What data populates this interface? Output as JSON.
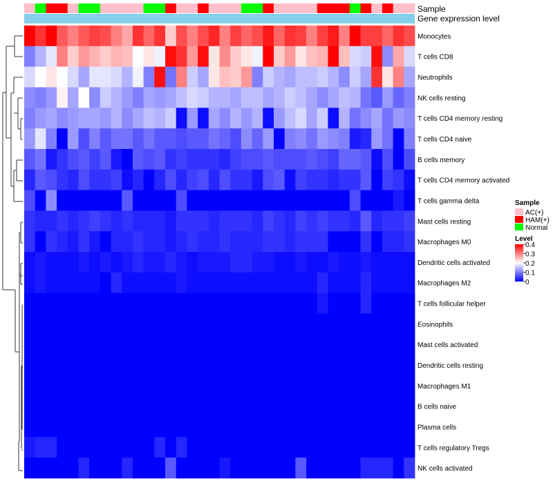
{
  "chart_data": {
    "type": "heatmap",
    "annotation_labels": {
      "sample": "Sample",
      "level": "Gene expression level"
    },
    "rows": [
      "Monocytes",
      "T cells CD8",
      "Neutrophils",
      "NK cells resting",
      "T cells CD4 memory resting",
      "T cells CD4 naive",
      "B cells memory",
      "T cells CD4 memory activated",
      "T cells gamma delta",
      "Mast cells resting",
      "Macrophages M0",
      "Dendritic cells activated",
      "Macrophages M2",
      "T cells follicular helper",
      "Eosinophils",
      "Mast cells activated",
      "Dendritic cells resting",
      "Macrophages M1",
      "B cells naive",
      "Plasma cells",
      "T cells regulatory  Tregs",
      "NK cells activated"
    ],
    "samples": [
      "AC(+)",
      "Normal",
      "HAM(+)",
      "HAM(+)",
      "AC(+)",
      "Normal",
      "Normal",
      "AC(+)",
      "AC(+)",
      "AC(+)",
      "AC(+)",
      "Normal",
      "Normal",
      "HAM(+)",
      "AC(+)",
      "AC(+)",
      "HAM(+)",
      "AC(+)",
      "AC(+)",
      "AC(+)",
      "Normal",
      "Normal",
      "HAM(+)",
      "AC(+)",
      "AC(+)",
      "AC(+)",
      "AC(+)",
      "HAM(+)",
      "HAM(+)",
      "HAM(+)",
      "Normal",
      "HAM(+)",
      "AC(+)",
      "HAM(+)",
      "AC(+)",
      "AC(+)"
    ],
    "sample_colors": {
      "AC(+)": "#ffc0cb",
      "HAM(+)": "#ff0000",
      "Normal": "#00ff00"
    },
    "level_bar_color": "#87ceeb",
    "values": [
      [
        0.4,
        0.36,
        0.4,
        0.33,
        0.3,
        0.33,
        0.35,
        0.34,
        0.3,
        0.27,
        0.36,
        0.32,
        0.36,
        0.24,
        0.34,
        0.3,
        0.34,
        0.37,
        0.3,
        0.35,
        0.32,
        0.34,
        0.38,
        0.32,
        0.36,
        0.35,
        0.3,
        0.35,
        0.38,
        0.3,
        0.4,
        0.35,
        0.35,
        0.32,
        0.36,
        0.34
      ],
      [
        0.1,
        0.14,
        0.18,
        0.3,
        0.24,
        0.28,
        0.26,
        0.24,
        0.26,
        0.25,
        0.2,
        0.22,
        0.19,
        0.39,
        0.36,
        0.28,
        0.39,
        0.22,
        0.29,
        0.24,
        0.22,
        0.19,
        0.4,
        0.24,
        0.28,
        0.22,
        0.25,
        0.26,
        0.4,
        0.25,
        0.17,
        0.16,
        0.39,
        0.11,
        0.27,
        0.17
      ],
      [
        0.17,
        0.2,
        0.22,
        0.2,
        0.17,
        0.13,
        0.18,
        0.18,
        0.17,
        0.14,
        0.19,
        0.1,
        0.39,
        0.09,
        0.3,
        0.16,
        0.13,
        0.22,
        0.25,
        0.24,
        0.28,
        0.1,
        0.16,
        0.14,
        0.13,
        0.15,
        0.15,
        0.16,
        0.14,
        0.11,
        0.16,
        0.13,
        0.36,
        0.22,
        0.3,
        0.13
      ],
      [
        0.11,
        0.1,
        0.12,
        0.21,
        0.13,
        0.2,
        0.11,
        0.16,
        0.14,
        0.12,
        0.1,
        0.13,
        0.12,
        0.13,
        0.15,
        0.17,
        0.16,
        0.14,
        0.14,
        0.13,
        0.15,
        0.15,
        0.13,
        0.14,
        0.16,
        0.15,
        0.13,
        0.11,
        0.13,
        0.15,
        0.14,
        0.09,
        0.07,
        0.12,
        0.08,
        0.1
      ],
      [
        0.1,
        0.12,
        0.13,
        0.11,
        0.12,
        0.13,
        0.13,
        0.12,
        0.14,
        0.11,
        0.13,
        0.15,
        0.14,
        0.16,
        0.01,
        0.12,
        0.01,
        0.13,
        0.11,
        0.14,
        0.12,
        0.14,
        0.01,
        0.12,
        0.15,
        0.17,
        0.13,
        0.16,
        0.01,
        0.14,
        0.09,
        0.11,
        0.13,
        0.09,
        0.12,
        0.11
      ],
      [
        0.12,
        0.18,
        0.1,
        0.0,
        0.12,
        0.06,
        0.1,
        0.07,
        0.09,
        0.09,
        0.07,
        0.09,
        0.07,
        0.07,
        0.06,
        0.07,
        0.07,
        0.09,
        0.08,
        0.06,
        0.11,
        0.08,
        0.12,
        0.0,
        0.1,
        0.11,
        0.09,
        0.12,
        0.11,
        0.1,
        0.02,
        0.03,
        0.12,
        0.09,
        0.0,
        0.1
      ],
      [
        0.07,
        0.09,
        0.02,
        0.04,
        0.06,
        0.07,
        0.05,
        0.07,
        0.02,
        0.0,
        0.07,
        0.06,
        0.07,
        0.04,
        0.05,
        0.04,
        0.04,
        0.04,
        0.03,
        0.05,
        0.06,
        0.06,
        0.07,
        0.06,
        0.06,
        0.06,
        0.07,
        0.06,
        0.05,
        0.08,
        0.08,
        0.07,
        0.01,
        0.06,
        0.0,
        0.06
      ],
      [
        0.03,
        0.07,
        0.06,
        0.04,
        0.03,
        0.06,
        0.04,
        0.04,
        0.05,
        0.01,
        0.03,
        0.0,
        0.03,
        0.06,
        0.03,
        0.05,
        0.06,
        0.03,
        0.06,
        0.04,
        0.04,
        0.02,
        0.06,
        0.07,
        0.01,
        0.05,
        0.04,
        0.04,
        0.03,
        0.04,
        0.04,
        0.07,
        0.0,
        0.05,
        0.04,
        0.01
      ],
      [
        0.06,
        0.0,
        0.11,
        0.0,
        0.0,
        0.0,
        0.0,
        0.0,
        0.0,
        0.07,
        0.0,
        0.0,
        0.0,
        0.0,
        0.06,
        0.0,
        0.0,
        0.0,
        0.0,
        0.0,
        0.0,
        0.0,
        0.0,
        0.0,
        0.0,
        0.0,
        0.0,
        0.0,
        0.0,
        0.0,
        0.06,
        0.0,
        0.0,
        0.0,
        0.02,
        0.0
      ],
      [
        0.04,
        0.03,
        0.03,
        0.04,
        0.03,
        0.04,
        0.05,
        0.04,
        0.03,
        0.04,
        0.03,
        0.03,
        0.03,
        0.02,
        0.04,
        0.04,
        0.04,
        0.03,
        0.04,
        0.04,
        0.04,
        0.03,
        0.05,
        0.04,
        0.03,
        0.05,
        0.04,
        0.05,
        0.04,
        0.04,
        0.03,
        0.07,
        0.03,
        0.04,
        0.04,
        0.05
      ],
      [
        0.04,
        0.0,
        0.04,
        0.03,
        0.02,
        0.04,
        0.02,
        0.0,
        0.03,
        0.03,
        0.04,
        0.03,
        0.03,
        0.02,
        0.03,
        0.04,
        0.03,
        0.03,
        0.04,
        0.03,
        0.03,
        0.03,
        0.04,
        0.04,
        0.03,
        0.04,
        0.04,
        0.04,
        0.0,
        0.0,
        0.0,
        0.04,
        0.0,
        0.03,
        0.03,
        0.04
      ],
      [
        0.01,
        0.02,
        0.01,
        0.01,
        0.01,
        0.02,
        0.01,
        0.02,
        0.01,
        0.02,
        0.03,
        0.02,
        0.02,
        0.03,
        0.02,
        0.01,
        0.02,
        0.02,
        0.02,
        0.03,
        0.03,
        0.02,
        0.02,
        0.01,
        0.01,
        0.02,
        0.01,
        0.01,
        0.02,
        0.01,
        0.01,
        0.02,
        0.01,
        0.01,
        0.01,
        0.01
      ],
      [
        0.01,
        0.02,
        0.01,
        0.01,
        0.01,
        0.01,
        0.01,
        0.0,
        0.03,
        0.01,
        0.01,
        0.01,
        0.01,
        0.01,
        0.02,
        0.01,
        0.01,
        0.01,
        0.01,
        0.01,
        0.01,
        0.01,
        0.01,
        0.01,
        0.01,
        0.01,
        0.01,
        0.03,
        0.01,
        0.01,
        0.01,
        0.03,
        0.01,
        0.01,
        0.01,
        0.01
      ],
      [
        0.0,
        0.0,
        0.0,
        0.0,
        0.0,
        0.0,
        0.0,
        0.0,
        0.0,
        0.0,
        0.0,
        0.0,
        0.0,
        0.0,
        0.0,
        0.0,
        0.0,
        0.0,
        0.0,
        0.0,
        0.0,
        0.0,
        0.0,
        0.0,
        0.0,
        0.0,
        0.0,
        0.02,
        0.0,
        0.0,
        0.0,
        0.03,
        0.0,
        0.0,
        0.0,
        0.0
      ],
      [
        0.0,
        0.0,
        0.0,
        0.0,
        0.0,
        0.0,
        0.0,
        0.0,
        0.0,
        0.0,
        0.0,
        0.0,
        0.0,
        0.0,
        0.0,
        0.0,
        0.0,
        0.0,
        0.0,
        0.0,
        0.0,
        0.0,
        0.0,
        0.0,
        0.0,
        0.0,
        0.0,
        0.0,
        0.0,
        0.0,
        0.0,
        0.0,
        0.0,
        0.0,
        0.0,
        0.0
      ],
      [
        0.0,
        0.0,
        0.0,
        0.0,
        0.0,
        0.0,
        0.0,
        0.0,
        0.0,
        0.0,
        0.0,
        0.0,
        0.0,
        0.0,
        0.0,
        0.0,
        0.0,
        0.0,
        0.0,
        0.0,
        0.0,
        0.0,
        0.0,
        0.0,
        0.0,
        0.0,
        0.0,
        0.0,
        0.0,
        0.0,
        0.0,
        0.0,
        0.0,
        0.0,
        0.0,
        0.0
      ],
      [
        0.0,
        0.0,
        0.0,
        0.0,
        0.0,
        0.0,
        0.0,
        0.0,
        0.0,
        0.0,
        0.0,
        0.0,
        0.0,
        0.0,
        0.0,
        0.0,
        0.0,
        0.0,
        0.0,
        0.0,
        0.0,
        0.0,
        0.0,
        0.0,
        0.0,
        0.0,
        0.0,
        0.0,
        0.0,
        0.0,
        0.0,
        0.0,
        0.0,
        0.0,
        0.0,
        0.0
      ],
      [
        0.0,
        0.0,
        0.0,
        0.0,
        0.0,
        0.0,
        0.0,
        0.0,
        0.0,
        0.0,
        0.0,
        0.0,
        0.0,
        0.0,
        0.0,
        0.0,
        0.0,
        0.0,
        0.0,
        0.0,
        0.0,
        0.0,
        0.0,
        0.0,
        0.0,
        0.0,
        0.0,
        0.0,
        0.0,
        0.0,
        0.0,
        0.0,
        0.0,
        0.0,
        0.0,
        0.0
      ],
      [
        0.0,
        0.0,
        0.0,
        0.0,
        0.0,
        0.0,
        0.0,
        0.0,
        0.0,
        0.0,
        0.0,
        0.0,
        0.0,
        0.0,
        0.0,
        0.0,
        0.0,
        0.0,
        0.0,
        0.0,
        0.0,
        0.0,
        0.0,
        0.0,
        0.0,
        0.0,
        0.0,
        0.0,
        0.0,
        0.0,
        0.0,
        0.0,
        0.0,
        0.0,
        0.0,
        0.0
      ],
      [
        0.0,
        0.0,
        0.0,
        0.0,
        0.0,
        0.0,
        0.0,
        0.0,
        0.0,
        0.0,
        0.0,
        0.0,
        0.0,
        0.0,
        0.0,
        0.0,
        0.0,
        0.0,
        0.0,
        0.0,
        0.0,
        0.0,
        0.0,
        0.0,
        0.0,
        0.0,
        0.0,
        0.0,
        0.0,
        0.0,
        0.0,
        0.0,
        0.0,
        0.0,
        0.0,
        0.0
      ],
      [
        0.02,
        0.03,
        0.03,
        0.0,
        0.0,
        0.0,
        0.0,
        0.0,
        0.0,
        0.0,
        0.0,
        0.0,
        0.03,
        0.0,
        0.03,
        0.0,
        0.0,
        0.0,
        0.0,
        0.0,
        0.0,
        0.0,
        0.0,
        0.0,
        0.0,
        0.0,
        0.0,
        0.0,
        0.0,
        0.0,
        0.0,
        0.0,
        0.0,
        0.0,
        0.0,
        0.0
      ],
      [
        0.0,
        0.0,
        0.0,
        0.0,
        0.0,
        0.03,
        0.0,
        0.0,
        0.0,
        0.03,
        0.0,
        0.0,
        0.0,
        0.07,
        0.0,
        0.0,
        0.0,
        0.0,
        0.02,
        0.0,
        0.0,
        0.0,
        0.0,
        0.0,
        0.0,
        0.07,
        0.0,
        0.0,
        0.0,
        0.0,
        0.0,
        0.03,
        0.03,
        0.03,
        0.0,
        0.04
      ]
    ],
    "legend": {
      "sample_title": "Sample",
      "sample_items": [
        "AC(+)",
        "HAM(+)",
        "Normal"
      ],
      "level_title": "Level",
      "level_ticks": [
        "0.4",
        "0.3",
        "0.2",
        "0.1",
        "0"
      ],
      "level_range": [
        0,
        0.4
      ],
      "gradient_colors": {
        "low": "#0000ff",
        "mid": "#ffffff",
        "high": "#ff0000"
      }
    }
  }
}
